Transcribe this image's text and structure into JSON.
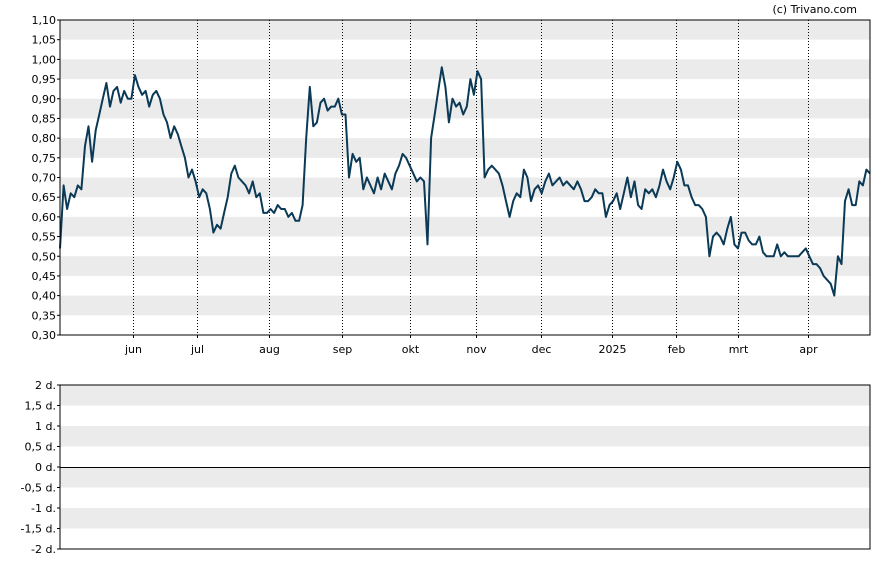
{
  "credit": "(c) Trivano.com",
  "colors": {
    "line": "#0b3a57",
    "band": "#ebebeb",
    "axis": "#000000",
    "background": "#ffffff"
  },
  "chart_data": [
    {
      "type": "line",
      "title": "",
      "xlabel": "",
      "ylabel": "",
      "ylim": [
        0.3,
        1.1
      ],
      "grid": true,
      "y_ticks": [
        "0,30",
        "0,35",
        "0,40",
        "0,45",
        "0,50",
        "0,55",
        "0,60",
        "0,65",
        "0,70",
        "0,75",
        "0,80",
        "0,85",
        "0,90",
        "0,95",
        "1,00",
        "1,05",
        "1,10"
      ],
      "x_ticks": [
        "jun",
        "jul",
        "aug",
        "sep",
        "okt",
        "nov",
        "dec",
        "2025",
        "feb",
        "mrt",
        "apr"
      ],
      "series": [
        {
          "values": [
            0.52,
            0.68,
            0.62,
            0.66,
            0.65,
            0.68,
            0.67,
            0.78,
            0.83,
            0.74,
            0.82,
            0.86,
            0.9,
            0.94,
            0.88,
            0.92,
            0.93,
            0.89,
            0.92,
            0.9,
            0.9,
            0.96,
            0.93,
            0.91,
            0.92,
            0.88,
            0.91,
            0.92,
            0.9,
            0.86,
            0.84,
            0.8,
            0.83,
            0.81,
            0.78,
            0.75,
            0.7,
            0.72,
            0.69,
            0.65,
            0.67,
            0.66,
            0.62,
            0.56,
            0.58,
            0.57,
            0.61,
            0.65,
            0.71,
            0.73,
            0.7,
            0.69,
            0.68,
            0.66,
            0.69,
            0.65,
            0.66,
            0.61,
            0.61,
            0.62,
            0.61,
            0.63,
            0.62,
            0.62,
            0.6,
            0.61,
            0.59,
            0.59,
            0.63,
            0.8,
            0.93,
            0.83,
            0.84,
            0.89,
            0.9,
            0.87,
            0.88,
            0.88,
            0.9,
            0.86,
            0.86,
            0.7,
            0.76,
            0.74,
            0.75,
            0.67,
            0.7,
            0.68,
            0.66,
            0.7,
            0.67,
            0.71,
            0.69,
            0.67,
            0.71,
            0.73,
            0.76,
            0.75,
            0.73,
            0.71,
            0.69,
            0.7,
            0.69,
            0.53,
            0.8,
            0.86,
            0.92,
            0.98,
            0.93,
            0.84,
            0.9,
            0.88,
            0.89,
            0.86,
            0.88,
            0.95,
            0.91,
            0.97,
            0.95,
            0.7,
            0.72,
            0.73,
            0.72,
            0.71,
            0.68,
            0.64,
            0.6,
            0.64,
            0.66,
            0.65,
            0.72,
            0.7,
            0.64,
            0.67,
            0.68,
            0.66,
            0.69,
            0.71,
            0.68,
            0.69,
            0.7,
            0.68,
            0.69,
            0.68,
            0.67,
            0.69,
            0.67,
            0.64,
            0.64,
            0.65,
            0.67,
            0.66,
            0.66,
            0.6,
            0.63,
            0.64,
            0.66,
            0.62,
            0.66,
            0.7,
            0.65,
            0.69,
            0.63,
            0.62,
            0.67,
            0.66,
            0.67,
            0.65,
            0.68,
            0.72,
            0.69,
            0.67,
            0.7,
            0.74,
            0.72,
            0.68,
            0.68,
            0.65,
            0.63,
            0.63,
            0.62,
            0.6,
            0.5,
            0.55,
            0.56,
            0.55,
            0.53,
            0.57,
            0.6,
            0.53,
            0.52,
            0.56,
            0.56,
            0.54,
            0.53,
            0.53,
            0.55,
            0.51,
            0.5,
            0.5,
            0.5,
            0.53,
            0.5,
            0.51,
            0.5,
            0.5,
            0.5,
            0.5,
            0.51,
            0.52,
            0.5,
            0.48,
            0.48,
            0.47,
            0.45,
            0.44,
            0.43,
            0.4,
            0.5,
            0.48,
            0.64,
            0.67,
            0.63,
            0.63,
            0.69,
            0.68,
            0.72,
            0.71
          ]
        }
      ]
    },
    {
      "type": "line",
      "title": "",
      "xlabel": "",
      "ylabel": "",
      "ylim": [
        -2,
        2
      ],
      "grid": true,
      "y_ticks": [
        "2 d.",
        "1,5 d.",
        "1 d.",
        "0,5 d.",
        "0 d.",
        "-0,5 d.",
        "-1 d.",
        "-1,5 d.",
        "-2 d."
      ],
      "series": []
    }
  ]
}
